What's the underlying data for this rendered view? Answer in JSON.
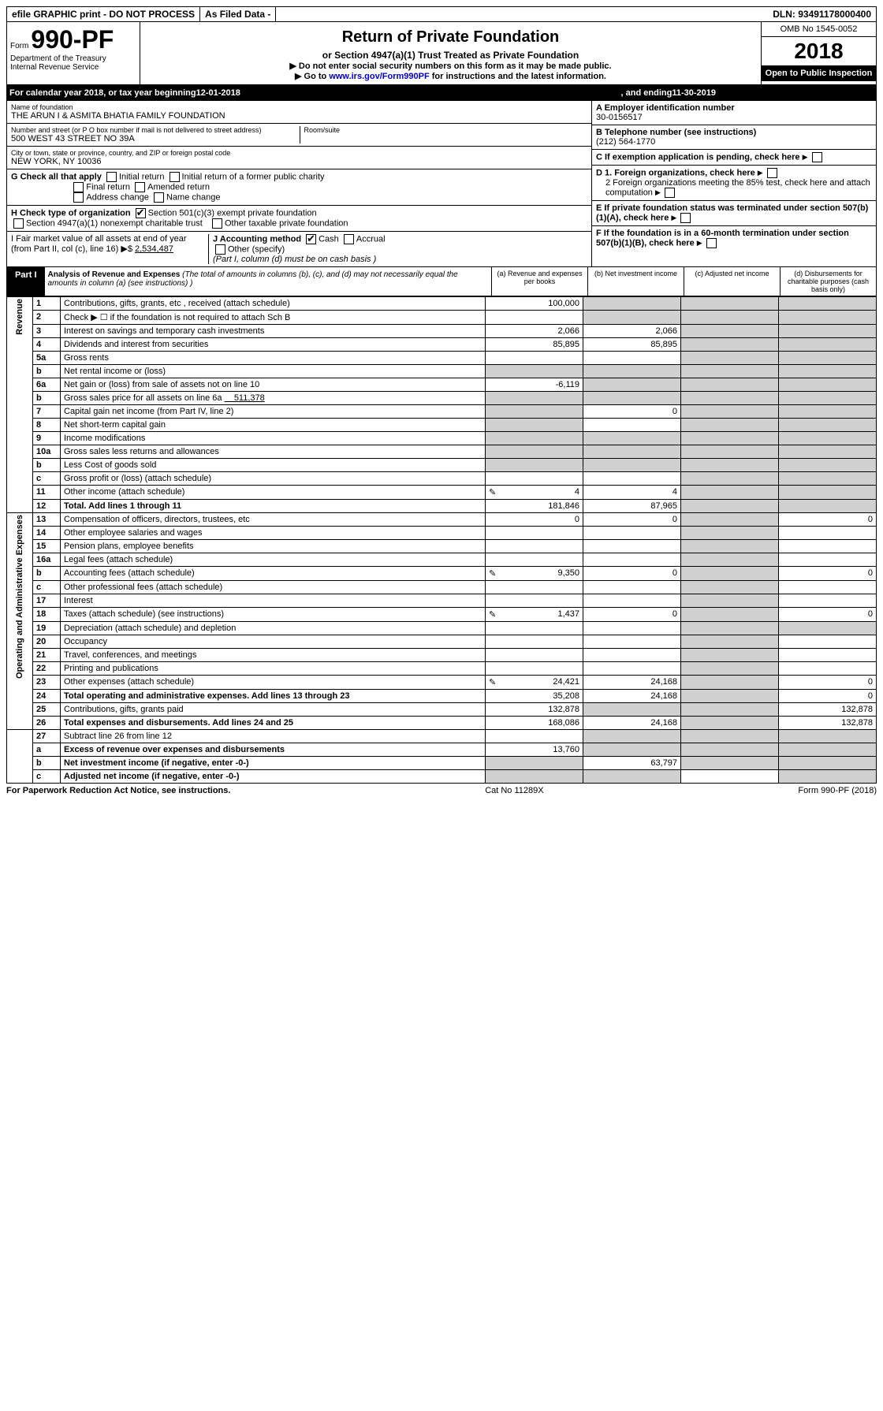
{
  "top": {
    "efile": "efile GRAPHIC print - DO NOT PROCESS",
    "asfiled": "As Filed Data -",
    "dln": "DLN: 93491178000400"
  },
  "header": {
    "form_prefix": "Form",
    "form_no": "990-PF",
    "dept1": "Department of the Treasury",
    "dept2": "Internal Revenue Service",
    "title": "Return of Private Foundation",
    "subtitle": "or Section 4947(a)(1) Trust Treated as Private Foundation",
    "instr1": "▶ Do not enter social security numbers on this form as it may be made public.",
    "instr2_pre": "▶ Go to ",
    "instr2_link": "www.irs.gov/Form990PF",
    "instr2_post": " for instructions and the latest information.",
    "omb": "OMB No 1545-0052",
    "year": "2018",
    "open": "Open to Public Inspection"
  },
  "calyear": {
    "pre": "For calendar year 2018, or tax year beginning ",
    "begin": "12-01-2018",
    "mid": ", and ending ",
    "end": "11-30-2019"
  },
  "info": {
    "name_label": "Name of foundation",
    "name": "THE ARUN I & ASMITA BHATIA FAMILY FOUNDATION",
    "addr_label": "Number and street (or P O  box number if mail is not delivered to street address)",
    "room_label": "Room/suite",
    "addr": "500 WEST 43 STREET NO 39A",
    "city_label": "City or town, state or province, country, and ZIP or foreign postal code",
    "city": "NEW YORK, NY  10036",
    "ein_label": "A Employer identification number",
    "ein": "30-0156517",
    "tel_label": "B Telephone number (see instructions)",
    "tel": "(212) 564-1770",
    "c_label": "C If exemption application is pending, check here",
    "g_label": "G Check all that apply",
    "g_opts": [
      "Initial return",
      "Initial return of a former public charity",
      "Final return",
      "Amended return",
      "Address change",
      "Name change"
    ],
    "h_label": "H Check type of organization",
    "h_opt1": "Section 501(c)(3) exempt private foundation",
    "h_opt2": "Section 4947(a)(1) nonexempt charitable trust",
    "h_opt3": "Other taxable private foundation",
    "d1": "D 1. Foreign organizations, check here",
    "d2": "2 Foreign organizations meeting the 85% test, check here and attach computation",
    "e": "E  If private foundation status was terminated under section 507(b)(1)(A), check here",
    "f": "F  If the foundation is in a 60-month termination under section 507(b)(1)(B), check here",
    "i_label": "I Fair market value of all assets at end of year (from Part II, col  (c), line 16) ▶$ ",
    "i_val": "2,534,487",
    "j_label": "J Accounting method",
    "j_cash": "Cash",
    "j_accrual": "Accrual",
    "j_other": "Other (specify)",
    "j_note": "(Part I, column (d) must be on cash basis )"
  },
  "part1": {
    "label": "Part I",
    "title": "Analysis of Revenue and Expenses",
    "title_note": "(The total of amounts in columns (b), (c), and (d) may not necessarily equal the amounts in column (a) (see instructions) )",
    "col_a": "(a) Revenue and expenses per books",
    "col_b": "(b) Net investment income",
    "col_c": "(c) Adjusted net income",
    "col_d": "(d) Disbursements for charitable purposes (cash basis only)"
  },
  "sidelabels": {
    "rev": "Revenue",
    "exp": "Operating and Administrative Expenses"
  },
  "rows": {
    "r1": {
      "n": "1",
      "d": "Contributions, gifts, grants, etc , received (attach schedule)",
      "a": "100,000"
    },
    "r2": {
      "n": "2",
      "d": "Check ▶ ☐ if the foundation is not required to attach Sch B"
    },
    "r3": {
      "n": "3",
      "d": "Interest on savings and temporary cash investments",
      "a": "2,066",
      "b": "2,066"
    },
    "r4": {
      "n": "4",
      "d": "Dividends and interest from securities",
      "a": "85,895",
      "b": "85,895"
    },
    "r5a": {
      "n": "5a",
      "d": "Gross rents"
    },
    "r5b": {
      "n": "b",
      "d": "Net rental income or (loss)"
    },
    "r6a": {
      "n": "6a",
      "d": "Net gain or (loss) from sale of assets not on line 10",
      "a": "-6,119"
    },
    "r6b": {
      "n": "b",
      "d": "Gross sales price for all assets on line 6a",
      "inline": "511,378"
    },
    "r7": {
      "n": "7",
      "d": "Capital gain net income (from Part IV, line 2)",
      "b": "0"
    },
    "r8": {
      "n": "8",
      "d": "Net short-term capital gain"
    },
    "r9": {
      "n": "9",
      "d": "Income modifications"
    },
    "r10a": {
      "n": "10a",
      "d": "Gross sales less returns and allowances"
    },
    "r10b": {
      "n": "b",
      "d": "Less  Cost of goods sold"
    },
    "r10c": {
      "n": "c",
      "d": "Gross profit or (loss) (attach schedule)"
    },
    "r11": {
      "n": "11",
      "d": "Other income (attach schedule)",
      "a": "4",
      "b": "4",
      "pencil": true
    },
    "r12": {
      "n": "12",
      "d": "Total. Add lines 1 through 11",
      "a": "181,846",
      "b": "87,965",
      "bold": true
    },
    "r13": {
      "n": "13",
      "d": "Compensation of officers, directors, trustees, etc",
      "a": "0",
      "b": "0",
      "dd": "0"
    },
    "r14": {
      "n": "14",
      "d": "Other employee salaries and wages"
    },
    "r15": {
      "n": "15",
      "d": "Pension plans, employee benefits"
    },
    "r16a": {
      "n": "16a",
      "d": "Legal fees (attach schedule)"
    },
    "r16b": {
      "n": "b",
      "d": "Accounting fees (attach schedule)",
      "a": "9,350",
      "b": "0",
      "dd": "0",
      "pencil": true
    },
    "r16c": {
      "n": "c",
      "d": "Other professional fees (attach schedule)"
    },
    "r17": {
      "n": "17",
      "d": "Interest"
    },
    "r18": {
      "n": "18",
      "d": "Taxes (attach schedule) (see instructions)",
      "a": "1,437",
      "b": "0",
      "dd": "0",
      "pencil": true
    },
    "r19": {
      "n": "19",
      "d": "Depreciation (attach schedule) and depletion"
    },
    "r20": {
      "n": "20",
      "d": "Occupancy"
    },
    "r21": {
      "n": "21",
      "d": "Travel, conferences, and meetings"
    },
    "r22": {
      "n": "22",
      "d": "Printing and publications"
    },
    "r23": {
      "n": "23",
      "d": "Other expenses (attach schedule)",
      "a": "24,421",
      "b": "24,168",
      "dd": "0",
      "pencil": true
    },
    "r24": {
      "n": "24",
      "d": "Total operating and administrative expenses. Add lines 13 through 23",
      "a": "35,208",
      "b": "24,168",
      "dd": "0",
      "bold": true
    },
    "r25": {
      "n": "25",
      "d": "Contributions, gifts, grants paid",
      "a": "132,878",
      "dd": "132,878"
    },
    "r26": {
      "n": "26",
      "d": "Total expenses and disbursements. Add lines 24 and 25",
      "a": "168,086",
      "b": "24,168",
      "dd": "132,878",
      "bold": true
    },
    "r27": {
      "n": "27",
      "d": "Subtract line 26 from line 12"
    },
    "r27a": {
      "n": "a",
      "d": "Excess of revenue over expenses and disbursements",
      "a": "13,760",
      "bold": true
    },
    "r27b": {
      "n": "b",
      "d": "Net investment income (if negative, enter -0-)",
      "b": "63,797",
      "bold": true
    },
    "r27c": {
      "n": "c",
      "d": "Adjusted net income (if negative, enter -0-)",
      "bold": true
    }
  },
  "footer": {
    "left": "For Paperwork Reduction Act Notice, see instructions.",
    "mid": "Cat  No  11289X",
    "right": "Form 990-PF (2018)"
  }
}
